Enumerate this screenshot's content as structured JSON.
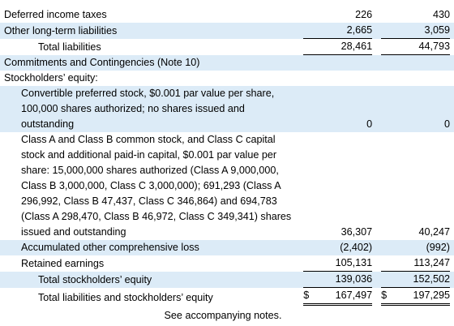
{
  "table": {
    "rows": [
      {
        "label": "Deferred income taxes",
        "values": [
          "226",
          "430"
        ]
      },
      {
        "label": "Other long-term liabilities",
        "values": [
          "2,665",
          "3,059"
        ]
      },
      {
        "label": "Total liabilities",
        "values": [
          "28,461",
          "44,793"
        ]
      },
      {
        "label": "Commitments and Contingencies (Note 10)"
      },
      {
        "label": "Stockholders’ equity:"
      },
      {
        "label": "Convertible preferred stock, $0.001 par value per share, 100,000 shares authorized; no shares issued and outstanding",
        "values": [
          "0",
          "0"
        ]
      },
      {
        "label": "Class A and Class B common stock, and Class C capital stock and additional paid-in capital, $0.001 par value per share: 15,000,000 shares authorized (Class A 9,000,000, Class B 3,000,000, Class C 3,000,000); 691,293 (Class A 296,992, Class B 47,437, Class C 346,864) and 694,783 (Class A 298,470, Class B 46,972, Class C 349,341) shares issued and outstanding",
        "values": [
          "36,307",
          "40,247"
        ]
      },
      {
        "label": "Accumulated other comprehensive loss",
        "values": [
          "(2,402)",
          "(992)"
        ]
      },
      {
        "label": "Retained earnings",
        "values": [
          "105,131",
          "113,247"
        ]
      },
      {
        "label": "Total stockholders’ equity",
        "values": [
          "139,036",
          "152,502"
        ]
      },
      {
        "label": "Total liabilities and stockholders’ equity",
        "currency": "$",
        "values": [
          "167,497",
          "197,295"
        ]
      }
    ],
    "footnote": "See accompanying notes."
  }
}
